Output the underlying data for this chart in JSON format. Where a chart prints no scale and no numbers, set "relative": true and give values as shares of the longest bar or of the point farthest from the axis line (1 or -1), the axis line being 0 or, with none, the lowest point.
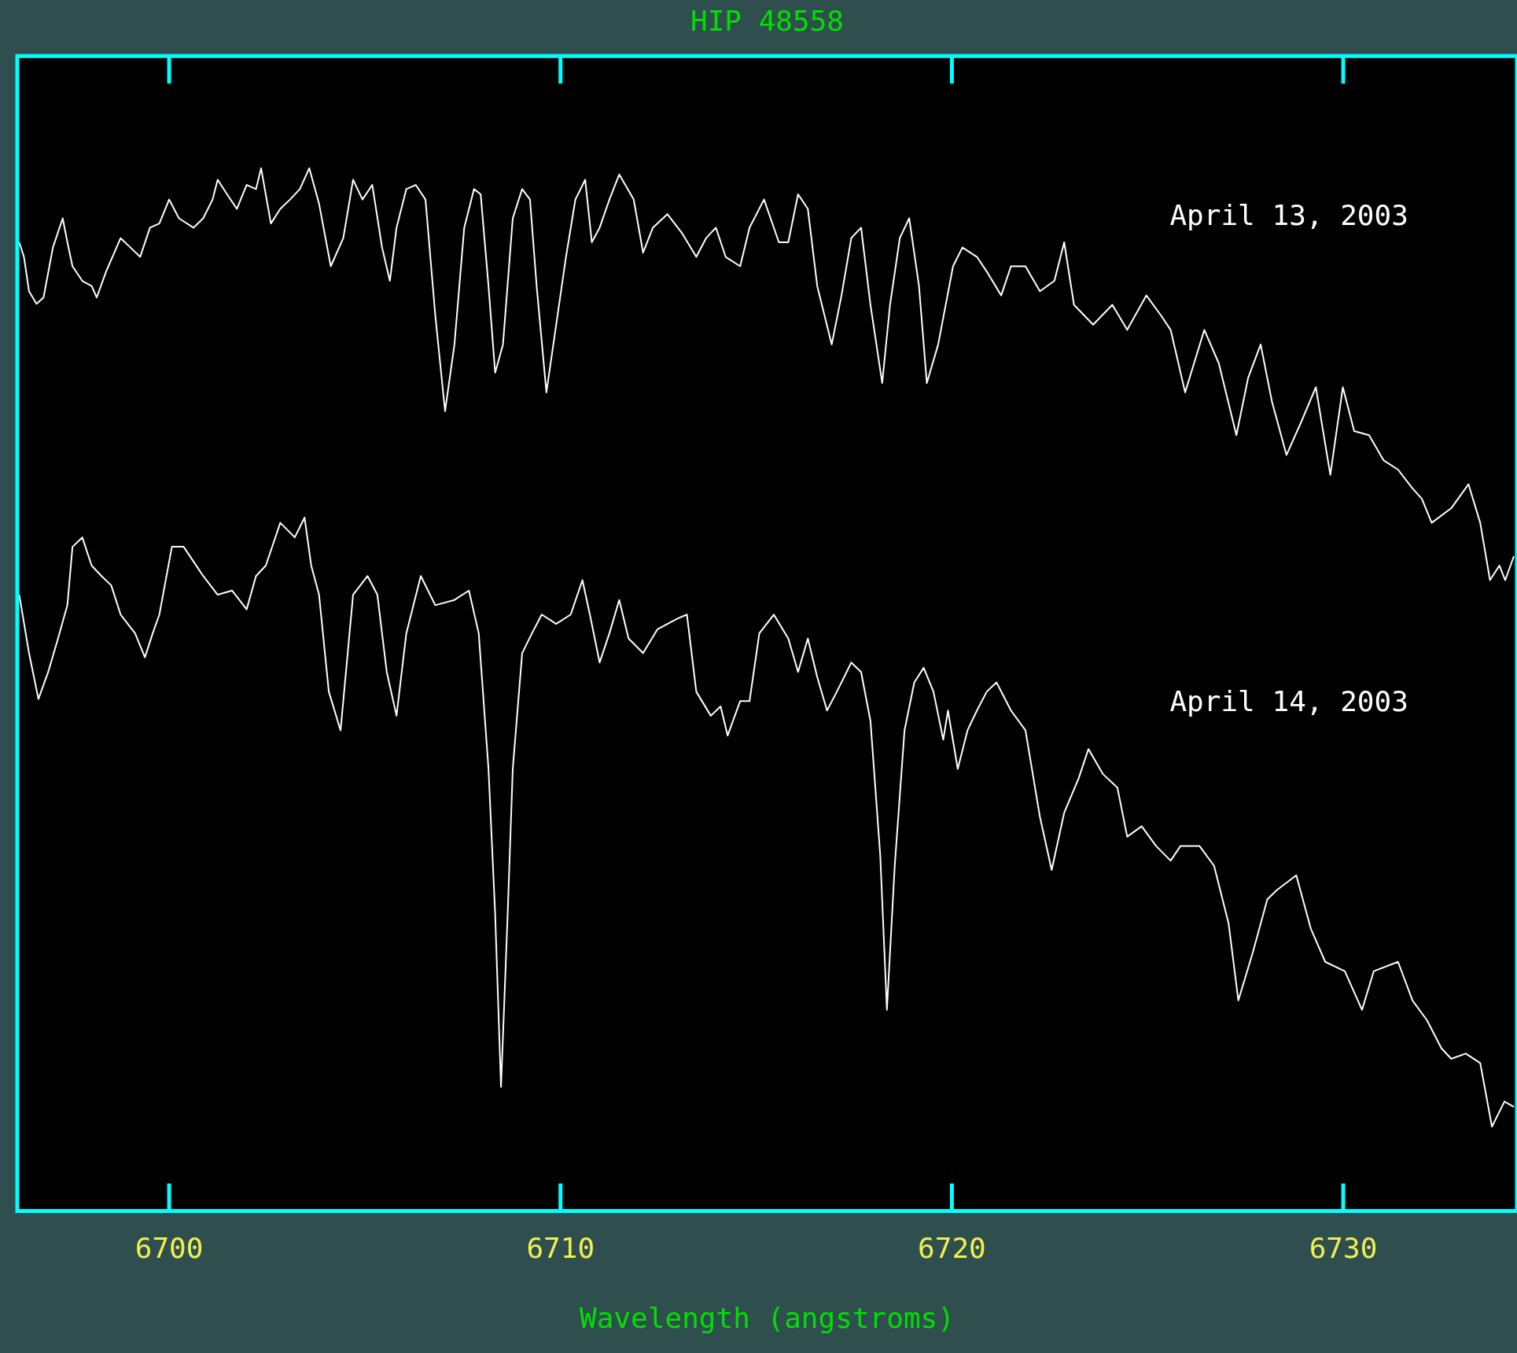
{
  "chart_data": {
    "type": "line",
    "title": "HIP 48558",
    "xlabel": "Wavelength (angstroms)",
    "xlim": [
      6696.12,
      6734.44
    ],
    "xticks": [
      6700,
      6710,
      6720,
      6730
    ],
    "relative": true,
    "annotations": [
      "April 13, 2003",
      "April 14, 2003"
    ],
    "series": [
      {
        "color": "#ffffff",
        "x": [
          6696.17,
          6696.29,
          6696.42,
          6696.61,
          6696.79,
          6697.03,
          6697.28,
          6697.4,
          6697.53,
          6697.78,
          6698.02,
          6698.15,
          6698.39,
          6698.76,
          6699.01,
          6699.26,
          6699.51,
          6699.75,
          6700.0,
          6700.25,
          6700.62,
          6700.87,
          6701.11,
          6701.24,
          6701.48,
          6701.73,
          6701.98,
          6702.22,
          6702.35,
          6702.6,
          6702.84,
          6703.09,
          6703.34,
          6703.58,
          6703.83,
          6704.13,
          6704.45,
          6704.7,
          6704.94,
          6705.19,
          6705.44,
          6705.64,
          6705.81,
          6706.06,
          6706.3,
          6706.55,
          6706.8,
          6707.05,
          6707.29,
          6707.54,
          6707.79,
          6707.96,
          6708.16,
          6708.33,
          6708.53,
          6708.78,
          6709.02,
          6709.22,
          6709.39,
          6709.64,
          6709.89,
          6710.14,
          6710.38,
          6710.63,
          6710.8,
          6711.0,
          6711.25,
          6711.5,
          6711.87,
          6712.11,
          6712.36,
          6712.73,
          6713.1,
          6713.47,
          6713.72,
          6713.97,
          6714.22,
          6714.59,
          6714.83,
          6715.2,
          6715.58,
          6715.82,
          6716.07,
          6716.32,
          6716.56,
          6716.93,
          6717.18,
          6717.43,
          6717.68,
          6717.92,
          6718.22,
          6718.42,
          6718.67,
          6718.91,
          6719.16,
          6719.36,
          6719.65,
          6720.03,
          6720.27,
          6720.64,
          6720.89,
          6721.26,
          6721.51,
          6721.88,
          6722.25,
          6722.62,
          6722.87,
          6723.12,
          6723.61,
          6724.1,
          6724.48,
          6724.97,
          6725.34,
          6725.59,
          6725.96,
          6726.45,
          6726.82,
          6727.27,
          6727.57,
          6727.89,
          6728.18,
          6728.55,
          6728.93,
          6729.3,
          6729.67,
          6729.99,
          6730.28,
          6730.66,
          6731.03,
          6731.4,
          6731.77,
          6732.01,
          6732.26,
          6732.76,
          6733.2,
          6733.5,
          6733.75,
          6733.99,
          6734.14,
          6734.36
        ],
        "values": [
          0.929,
          0.915,
          0.882,
          0.87,
          0.876,
          0.924,
          0.952,
          0.929,
          0.906,
          0.892,
          0.887,
          0.876,
          0.901,
          0.933,
          0.924,
          0.915,
          0.943,
          0.947,
          0.97,
          0.952,
          0.943,
          0.952,
          0.97,
          0.989,
          0.975,
          0.961,
          0.984,
          0.98,
          1.0,
          0.947,
          0.961,
          0.97,
          0.98,
          1.0,
          0.966,
          0.906,
          0.933,
          0.989,
          0.97,
          0.984,
          0.924,
          0.892,
          0.943,
          0.98,
          0.984,
          0.97,
          0.859,
          0.767,
          0.831,
          0.943,
          0.98,
          0.975,
          0.887,
          0.804,
          0.831,
          0.952,
          0.98,
          0.97,
          0.887,
          0.785,
          0.85,
          0.915,
          0.97,
          0.989,
          0.929,
          0.943,
          0.97,
          0.994,
          0.97,
          0.919,
          0.943,
          0.956,
          0.938,
          0.915,
          0.933,
          0.943,
          0.915,
          0.906,
          0.943,
          0.97,
          0.929,
          0.929,
          0.975,
          0.961,
          0.887,
          0.831,
          0.878,
          0.933,
          0.943,
          0.869,
          0.794,
          0.869,
          0.933,
          0.952,
          0.887,
          0.794,
          0.831,
          0.906,
          0.924,
          0.915,
          0.901,
          0.878,
          0.906,
          0.906,
          0.882,
          0.892,
          0.929,
          0.869,
          0.85,
          0.869,
          0.845,
          0.878,
          0.859,
          0.845,
          0.785,
          0.845,
          0.813,
          0.744,
          0.799,
          0.831,
          0.776,
          0.725,
          0.757,
          0.79,
          0.706,
          0.79,
          0.748,
          0.744,
          0.72,
          0.711,
          0.693,
          0.683,
          0.66,
          0.674,
          0.697,
          0.66,
          0.605,
          0.619,
          0.605,
          0.628
        ]
      },
      {
        "color": "#ffffff",
        "x": [
          6696.17,
          6696.42,
          6696.66,
          6696.91,
          6697.16,
          6697.4,
          6697.53,
          6697.78,
          6698.02,
          6698.27,
          6698.52,
          6698.76,
          6699.13,
          6699.38,
          6699.58,
          6699.75,
          6700.07,
          6700.37,
          6700.62,
          6700.87,
          6701.24,
          6701.61,
          6701.98,
          6702.22,
          6702.47,
          6702.84,
          6703.21,
          6703.46,
          6703.63,
          6703.83,
          6704.08,
          6704.38,
          6704.7,
          6705.07,
          6705.32,
          6705.56,
          6705.81,
          6706.06,
          6706.43,
          6706.8,
          6707.29,
          6707.66,
          6707.91,
          6708.16,
          6708.33,
          6708.48,
          6708.65,
          6708.78,
          6709.02,
          6709.27,
          6709.52,
          6709.89,
          6710.26,
          6710.56,
          6710.75,
          6711.0,
          6711.25,
          6711.5,
          6711.74,
          6712.11,
          6712.48,
          6712.98,
          6713.23,
          6713.47,
          6713.84,
          6714.09,
          6714.27,
          6714.59,
          6714.83,
          6715.08,
          6715.45,
          6715.82,
          6716.07,
          6716.32,
          6716.56,
          6716.81,
          6717.06,
          6717.43,
          6717.68,
          6717.92,
          6718.17,
          6718.34,
          6718.54,
          6718.79,
          6719.04,
          6719.28,
          6719.53,
          6719.78,
          6719.9,
          6720.15,
          6720.4,
          6720.64,
          6720.89,
          6721.14,
          6721.51,
          6721.88,
          6722.25,
          6722.55,
          6722.87,
          6723.24,
          6723.49,
          6723.86,
          6724.23,
          6724.48,
          6724.85,
          6725.22,
          6725.59,
          6725.84,
          6726.33,
          6726.7,
          6727.07,
          6727.32,
          6727.69,
          6728.06,
          6728.31,
          6728.8,
          6729.17,
          6729.54,
          6730.04,
          6730.48,
          6730.78,
          6731.4,
          6731.77,
          6732.14,
          6732.51,
          6732.76,
          6733.13,
          6733.5,
          6733.8,
          6734.12,
          6734.36
        ],
        "values": [
          0.591,
          0.535,
          0.491,
          0.517,
          0.549,
          0.581,
          0.637,
          0.646,
          0.619,
          0.609,
          0.6,
          0.572,
          0.554,
          0.531,
          0.554,
          0.572,
          0.637,
          0.637,
          0.623,
          0.609,
          0.591,
          0.595,
          0.577,
          0.609,
          0.619,
          0.66,
          0.646,
          0.665,
          0.619,
          0.591,
          0.498,
          0.461,
          0.591,
          0.609,
          0.591,
          0.517,
          0.475,
          0.554,
          0.609,
          0.581,
          0.586,
          0.595,
          0.554,
          0.424,
          0.285,
          0.119,
          0.285,
          0.424,
          0.535,
          0.554,
          0.572,
          0.563,
          0.572,
          0.605,
          0.572,
          0.526,
          0.554,
          0.586,
          0.549,
          0.535,
          0.558,
          0.568,
          0.572,
          0.498,
          0.475,
          0.484,
          0.456,
          0.489,
          0.489,
          0.554,
          0.572,
          0.549,
          0.517,
          0.549,
          0.512,
          0.48,
          0.498,
          0.526,
          0.517,
          0.47,
          0.341,
          0.193,
          0.331,
          0.461,
          0.507,
          0.521,
          0.498,
          0.452,
          0.48,
          0.424,
          0.461,
          0.48,
          0.498,
          0.507,
          0.48,
          0.461,
          0.378,
          0.327,
          0.382,
          0.415,
          0.443,
          0.419,
          0.406,
          0.359,
          0.369,
          0.35,
          0.336,
          0.35,
          0.35,
          0.331,
          0.276,
          0.202,
          0.248,
          0.299,
          0.308,
          0.322,
          0.271,
          0.239,
          0.23,
          0.193,
          0.23,
          0.239,
          0.202,
          0.183,
          0.156,
          0.146,
          0.151,
          0.142,
          0.081,
          0.105,
          0.1
        ]
      }
    ]
  }
}
